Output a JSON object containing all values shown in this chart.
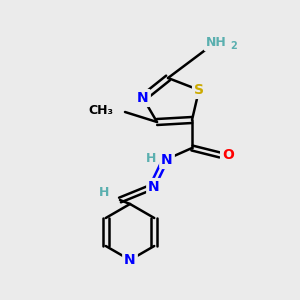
{
  "bg_color": "#ebebeb",
  "atom_colors": {
    "C": "#000000",
    "N": "#0000ff",
    "O": "#ff0000",
    "S": "#ccaa00",
    "H": "#5aafaf"
  },
  "bond_color": "#000000"
}
